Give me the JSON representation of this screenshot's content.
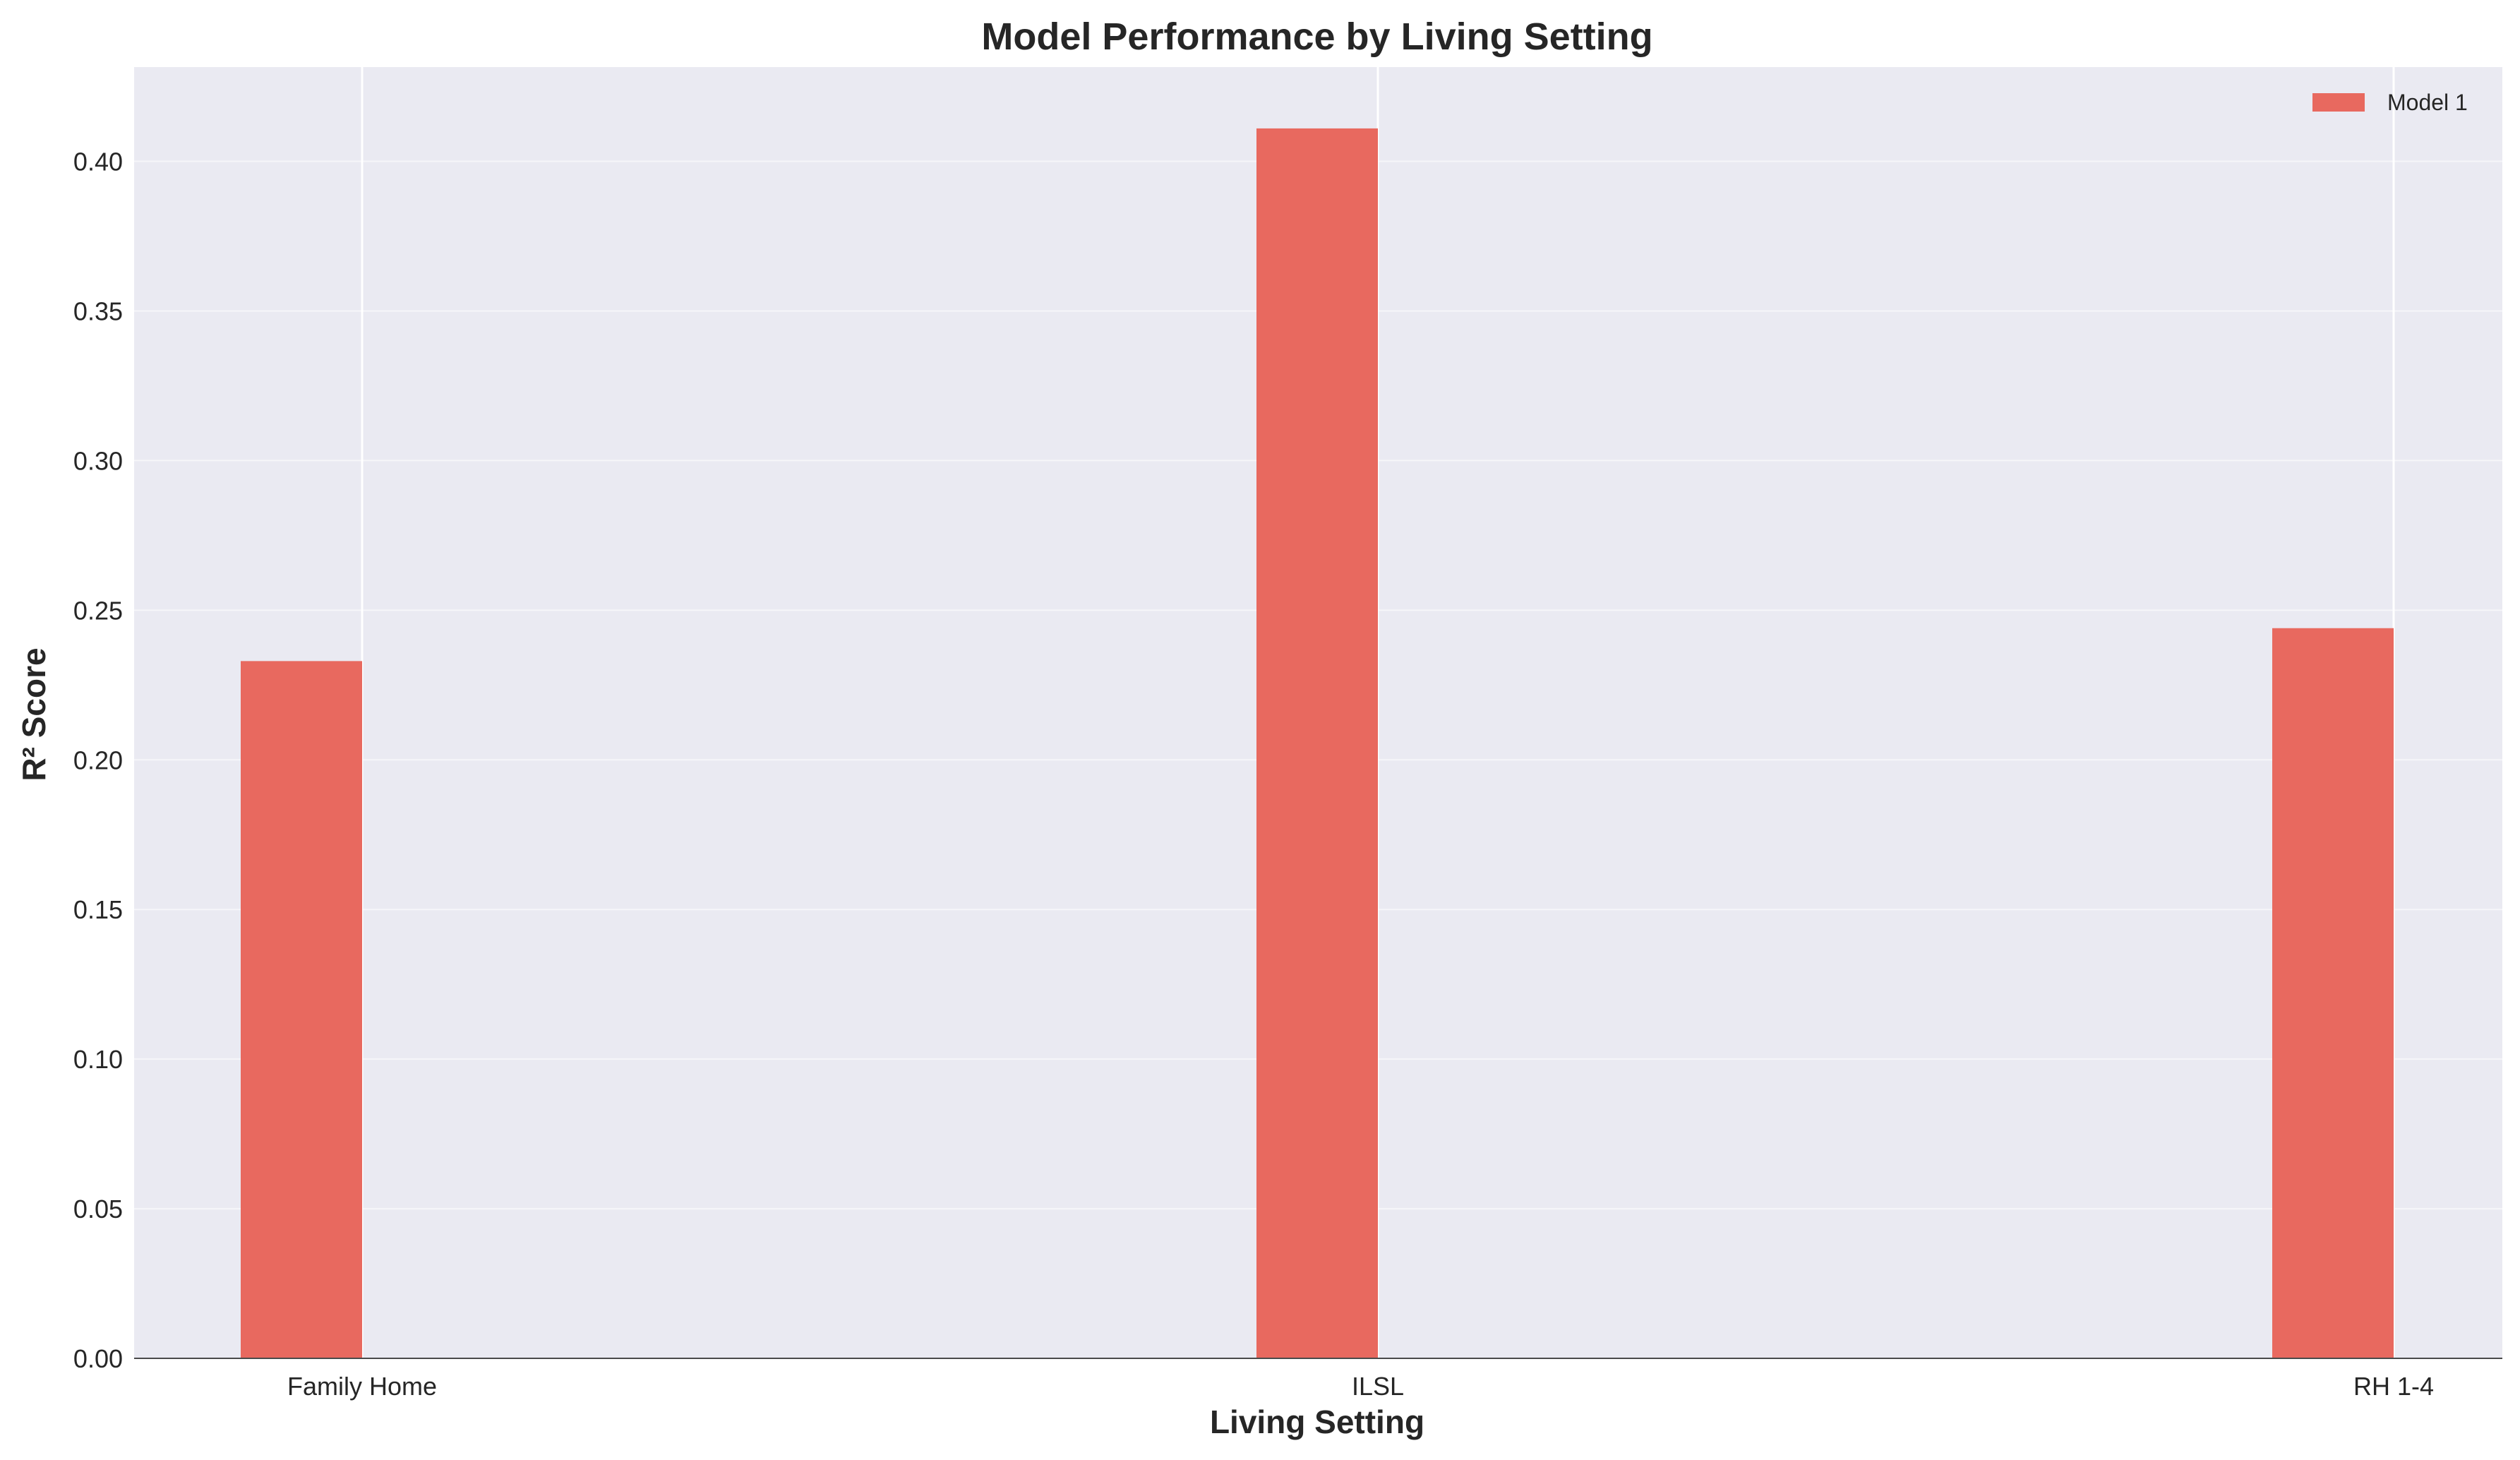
{
  "chart_data": {
    "type": "bar",
    "title": "Model Performance by Living Setting",
    "xlabel": "Living Setting",
    "ylabel": "R² Score",
    "categories": [
      "Family Home",
      "ILSL",
      "RH 1-4"
    ],
    "series": [
      {
        "name": "Model 1",
        "values": [
          0.233,
          0.411,
          0.244
        ],
        "color": "#e8695f"
      }
    ],
    "yticks": [
      0.0,
      0.05,
      0.1,
      0.15,
      0.2,
      0.25,
      0.3,
      0.35,
      0.4
    ],
    "ytick_labels": [
      "0.00",
      "0.05",
      "0.10",
      "0.15",
      "0.20",
      "0.25",
      "0.30",
      "0.35",
      "0.40"
    ],
    "ylim": [
      0,
      0.4315
    ],
    "grid": true,
    "legend_position": "top-right",
    "background_color": "#eaeaf2",
    "grid_color": "#ffffff"
  }
}
